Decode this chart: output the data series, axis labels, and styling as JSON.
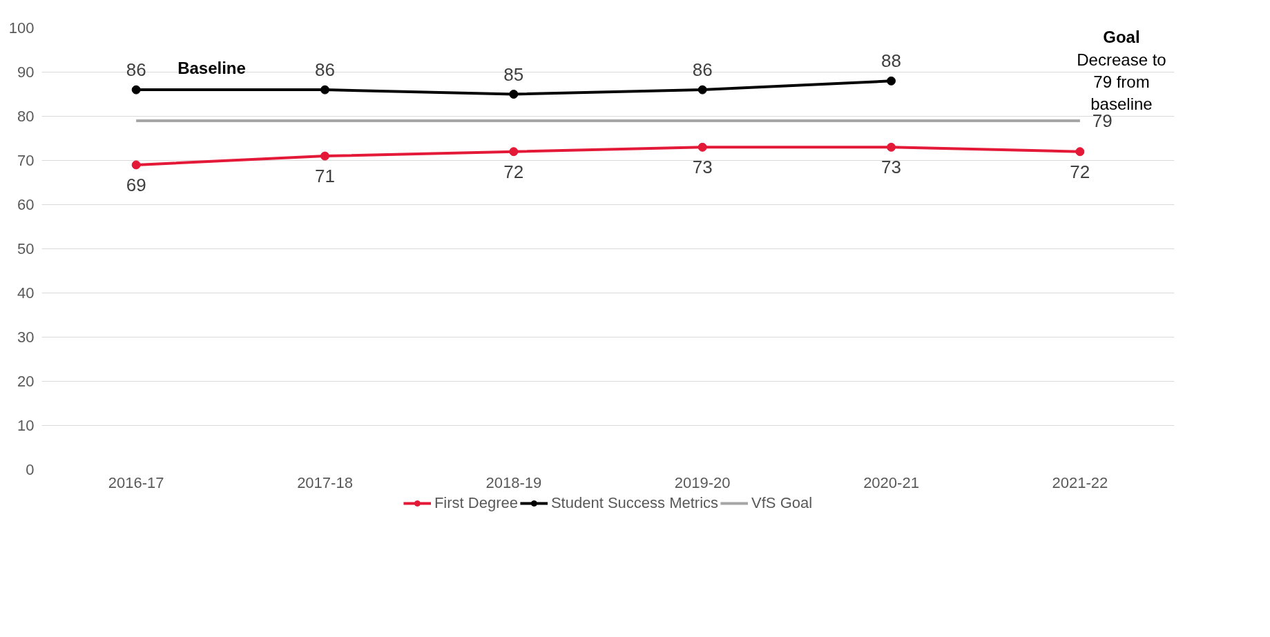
{
  "chart_data": {
    "type": "line",
    "categories": [
      "2016-17",
      "2017-18",
      "2018-19",
      "2019-20",
      "2020-21",
      "2021-22"
    ],
    "series": [
      {
        "name": "First Degree",
        "color": "#e31937",
        "marker": "circle",
        "values": [
          69,
          71,
          72,
          73,
          73,
          72
        ],
        "value_labels": [
          "69",
          "71",
          "72",
          "73",
          "73",
          "72"
        ]
      },
      {
        "name": "Student Success Metrics",
        "color": "#000000",
        "marker": "circle",
        "values": [
          86,
          86,
          85,
          86,
          88,
          null
        ],
        "value_labels": [
          "86",
          "86",
          "85",
          "86",
          "88",
          null
        ]
      },
      {
        "name": "VfS Goal",
        "color": "#a6a6a6",
        "marker": "none",
        "values": [
          79,
          79,
          79,
          79,
          79,
          79
        ],
        "value_labels": [
          null,
          null,
          null,
          null,
          null,
          "79"
        ]
      }
    ],
    "annotations": [
      "Baseline",
      "Goal",
      "Decrease to 79 from baseline"
    ],
    "ylim": [
      0,
      100
    ],
    "yticks": [
      0,
      10,
      20,
      30,
      40,
      50,
      60,
      70,
      80,
      90,
      100
    ],
    "grid": "y",
    "legend": "bottom"
  }
}
